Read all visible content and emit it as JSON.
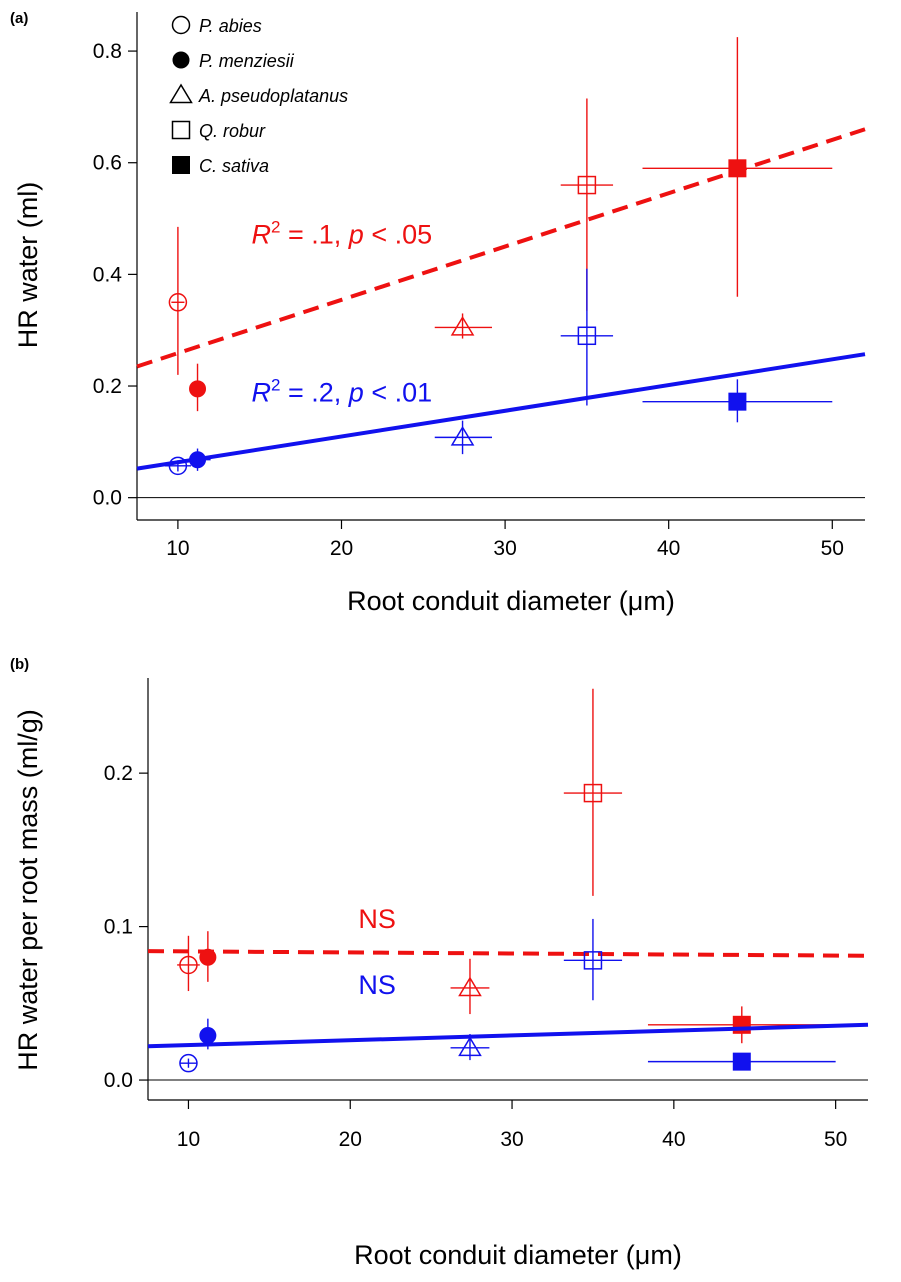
{
  "colors": {
    "red": "#ee1111",
    "blue": "#1111ee",
    "black": "#000000"
  },
  "legend": [
    {
      "label": "P. abies",
      "marker": "circle-open",
      "marker_icon": "open-circle-icon"
    },
    {
      "label": "P. menziesii",
      "marker": "circle-filled",
      "marker_icon": "filled-circle-icon"
    },
    {
      "label": "A. pseudoplatanus",
      "marker": "triangle-open",
      "marker_icon": "open-triangle-icon"
    },
    {
      "label": "Q. robur",
      "marker": "square-open",
      "marker_icon": "open-square-icon"
    },
    {
      "label": "C. sativa",
      "marker": "square-filled",
      "marker_icon": "filled-square-icon"
    }
  ],
  "chart_data": [
    {
      "type": "scatter",
      "panel_label": "(a)",
      "xlabel": "Root conduit diameter (μm)",
      "ylabel": "HR water (ml)",
      "xlim": [
        7.5,
        52
      ],
      "ylim": [
        -0.04,
        0.87
      ],
      "xticks": [
        10,
        20,
        30,
        40,
        50
      ],
      "yticks": [
        0.0,
        0.2,
        0.4,
        0.6,
        0.8
      ],
      "ytick_labels": [
        "0.0",
        "0.2",
        "0.4",
        "0.6",
        "0.8"
      ],
      "grid": false,
      "legend_position": "top-left",
      "series": [
        {
          "color": "red",
          "points": [
            {
              "species": "P. abies",
              "x": 10.0,
              "y": 0.35,
              "ylo": 0.22,
              "yhi": 0.485,
              "xlo": 9.6,
              "xhi": 10.4
            },
            {
              "species": "P. menziesii",
              "x": 11.2,
              "y": 0.195,
              "ylo": 0.155,
              "yhi": 0.24,
              "xlo": 11.2,
              "xhi": 11.2
            },
            {
              "species": "A. pseudoplatanus",
              "x": 27.4,
              "y": 0.305,
              "ylo": 0.285,
              "yhi": 0.33,
              "xlo": 25.7,
              "xhi": 29.2
            },
            {
              "species": "Q. robur",
              "x": 35.0,
              "y": 0.56,
              "ylo": 0.335,
              "yhi": 0.715,
              "xlo": 33.4,
              "xhi": 36.6
            },
            {
              "species": "C. sativa",
              "x": 44.2,
              "y": 0.59,
              "ylo": 0.36,
              "yhi": 0.825,
              "xlo": 38.4,
              "xhi": 50.0
            }
          ],
          "fit": {
            "x": [
              7.5,
              52
            ],
            "y": [
              0.235,
              0.66
            ],
            "style": "dashed"
          },
          "annotation": {
            "r2": ".1",
            "p": ".05",
            "x": 14.5,
            "y": 0.455
          }
        },
        {
          "color": "blue",
          "points": [
            {
              "species": "P. abies",
              "x": 10.0,
              "y": 0.057,
              "ylo": 0.047,
              "yhi": 0.067,
              "xlo": 9.2,
              "xhi": 10.8
            },
            {
              "species": "P. menziesii",
              "x": 11.2,
              "y": 0.068,
              "ylo": 0.048,
              "yhi": 0.088,
              "xlo": 10.4,
              "xhi": 12.0
            },
            {
              "species": "A. pseudoplatanus",
              "x": 27.4,
              "y": 0.108,
              "ylo": 0.078,
              "yhi": 0.138,
              "xlo": 25.7,
              "xhi": 29.2
            },
            {
              "species": "Q. robur",
              "x": 35.0,
              "y": 0.29,
              "ylo": 0.165,
              "yhi": 0.41,
              "xlo": 33.4,
              "xhi": 36.6
            },
            {
              "species": "C. sativa",
              "x": 44.2,
              "y": 0.172,
              "ylo": 0.135,
              "yhi": 0.212,
              "xlo": 38.4,
              "xhi": 50.0
            }
          ],
          "fit": {
            "x": [
              7.5,
              52
            ],
            "y": [
              0.052,
              0.257
            ],
            "style": "solid"
          },
          "annotation": {
            "r2": ".2",
            "p": ".01",
            "x": 14.5,
            "y": 0.172
          }
        }
      ]
    },
    {
      "type": "scatter",
      "panel_label": "(b)",
      "xlabel": "Root conduit diameter (μm)",
      "ylabel": "HR water per root mass (ml/g)",
      "xlim": [
        7.5,
        52
      ],
      "ylim": [
        -0.013,
        0.262
      ],
      "xticks": [
        10,
        20,
        30,
        40,
        50
      ],
      "yticks": [
        0.0,
        0.1,
        0.2
      ],
      "ytick_labels": [
        "0.0",
        "0.1",
        "0.2"
      ],
      "grid": false,
      "series": [
        {
          "color": "red",
          "points": [
            {
              "species": "P. abies",
              "x": 10.0,
              "y": 0.075,
              "ylo": 0.058,
              "yhi": 0.094,
              "xlo": 9.3,
              "xhi": 10.7
            },
            {
              "species": "P. menziesii",
              "x": 11.2,
              "y": 0.08,
              "ylo": 0.064,
              "yhi": 0.097,
              "xlo": 11.2,
              "xhi": 11.2
            },
            {
              "species": "A. pseudoplatanus",
              "x": 27.4,
              "y": 0.06,
              "ylo": 0.043,
              "yhi": 0.079,
              "xlo": 26.2,
              "xhi": 28.6
            },
            {
              "species": "Q. robur",
              "x": 35.0,
              "y": 0.187,
              "ylo": 0.12,
              "yhi": 0.255,
              "xlo": 33.2,
              "xhi": 36.8
            },
            {
              "species": "C. sativa",
              "x": 44.2,
              "y": 0.036,
              "ylo": 0.024,
              "yhi": 0.048,
              "xlo": 38.4,
              "xhi": 50.0
            }
          ],
          "fit": {
            "x": [
              7.5,
              52
            ],
            "y": [
              0.084,
              0.081
            ],
            "style": "dashed"
          },
          "annotation": {
            "text": "NS",
            "x": 20.5,
            "y": 0.099
          }
        },
        {
          "color": "blue",
          "points": [
            {
              "species": "P. abies",
              "x": 10.0,
              "y": 0.011,
              "ylo": 0.008,
              "yhi": 0.014,
              "xlo": 9.5,
              "xhi": 10.5
            },
            {
              "species": "P. menziesii",
              "x": 11.2,
              "y": 0.029,
              "ylo": 0.02,
              "yhi": 0.04,
              "xlo": 11.2,
              "xhi": 11.2
            },
            {
              "species": "A. pseudoplatanus",
              "x": 27.4,
              "y": 0.021,
              "ylo": 0.013,
              "yhi": 0.03,
              "xlo": 26.2,
              "xhi": 28.6
            },
            {
              "species": "Q. robur",
              "x": 35.0,
              "y": 0.078,
              "ylo": 0.052,
              "yhi": 0.105,
              "xlo": 33.2,
              "xhi": 36.8
            },
            {
              "species": "C. sativa",
              "x": 44.2,
              "y": 0.012,
              "ylo": 0.012,
              "yhi": 0.012,
              "xlo": 38.4,
              "xhi": 50.0
            }
          ],
          "fit": {
            "x": [
              7.5,
              52
            ],
            "y": [
              0.022,
              0.036
            ],
            "style": "solid"
          },
          "annotation": {
            "text": "NS",
            "x": 20.5,
            "y": 0.056
          }
        }
      ]
    }
  ]
}
